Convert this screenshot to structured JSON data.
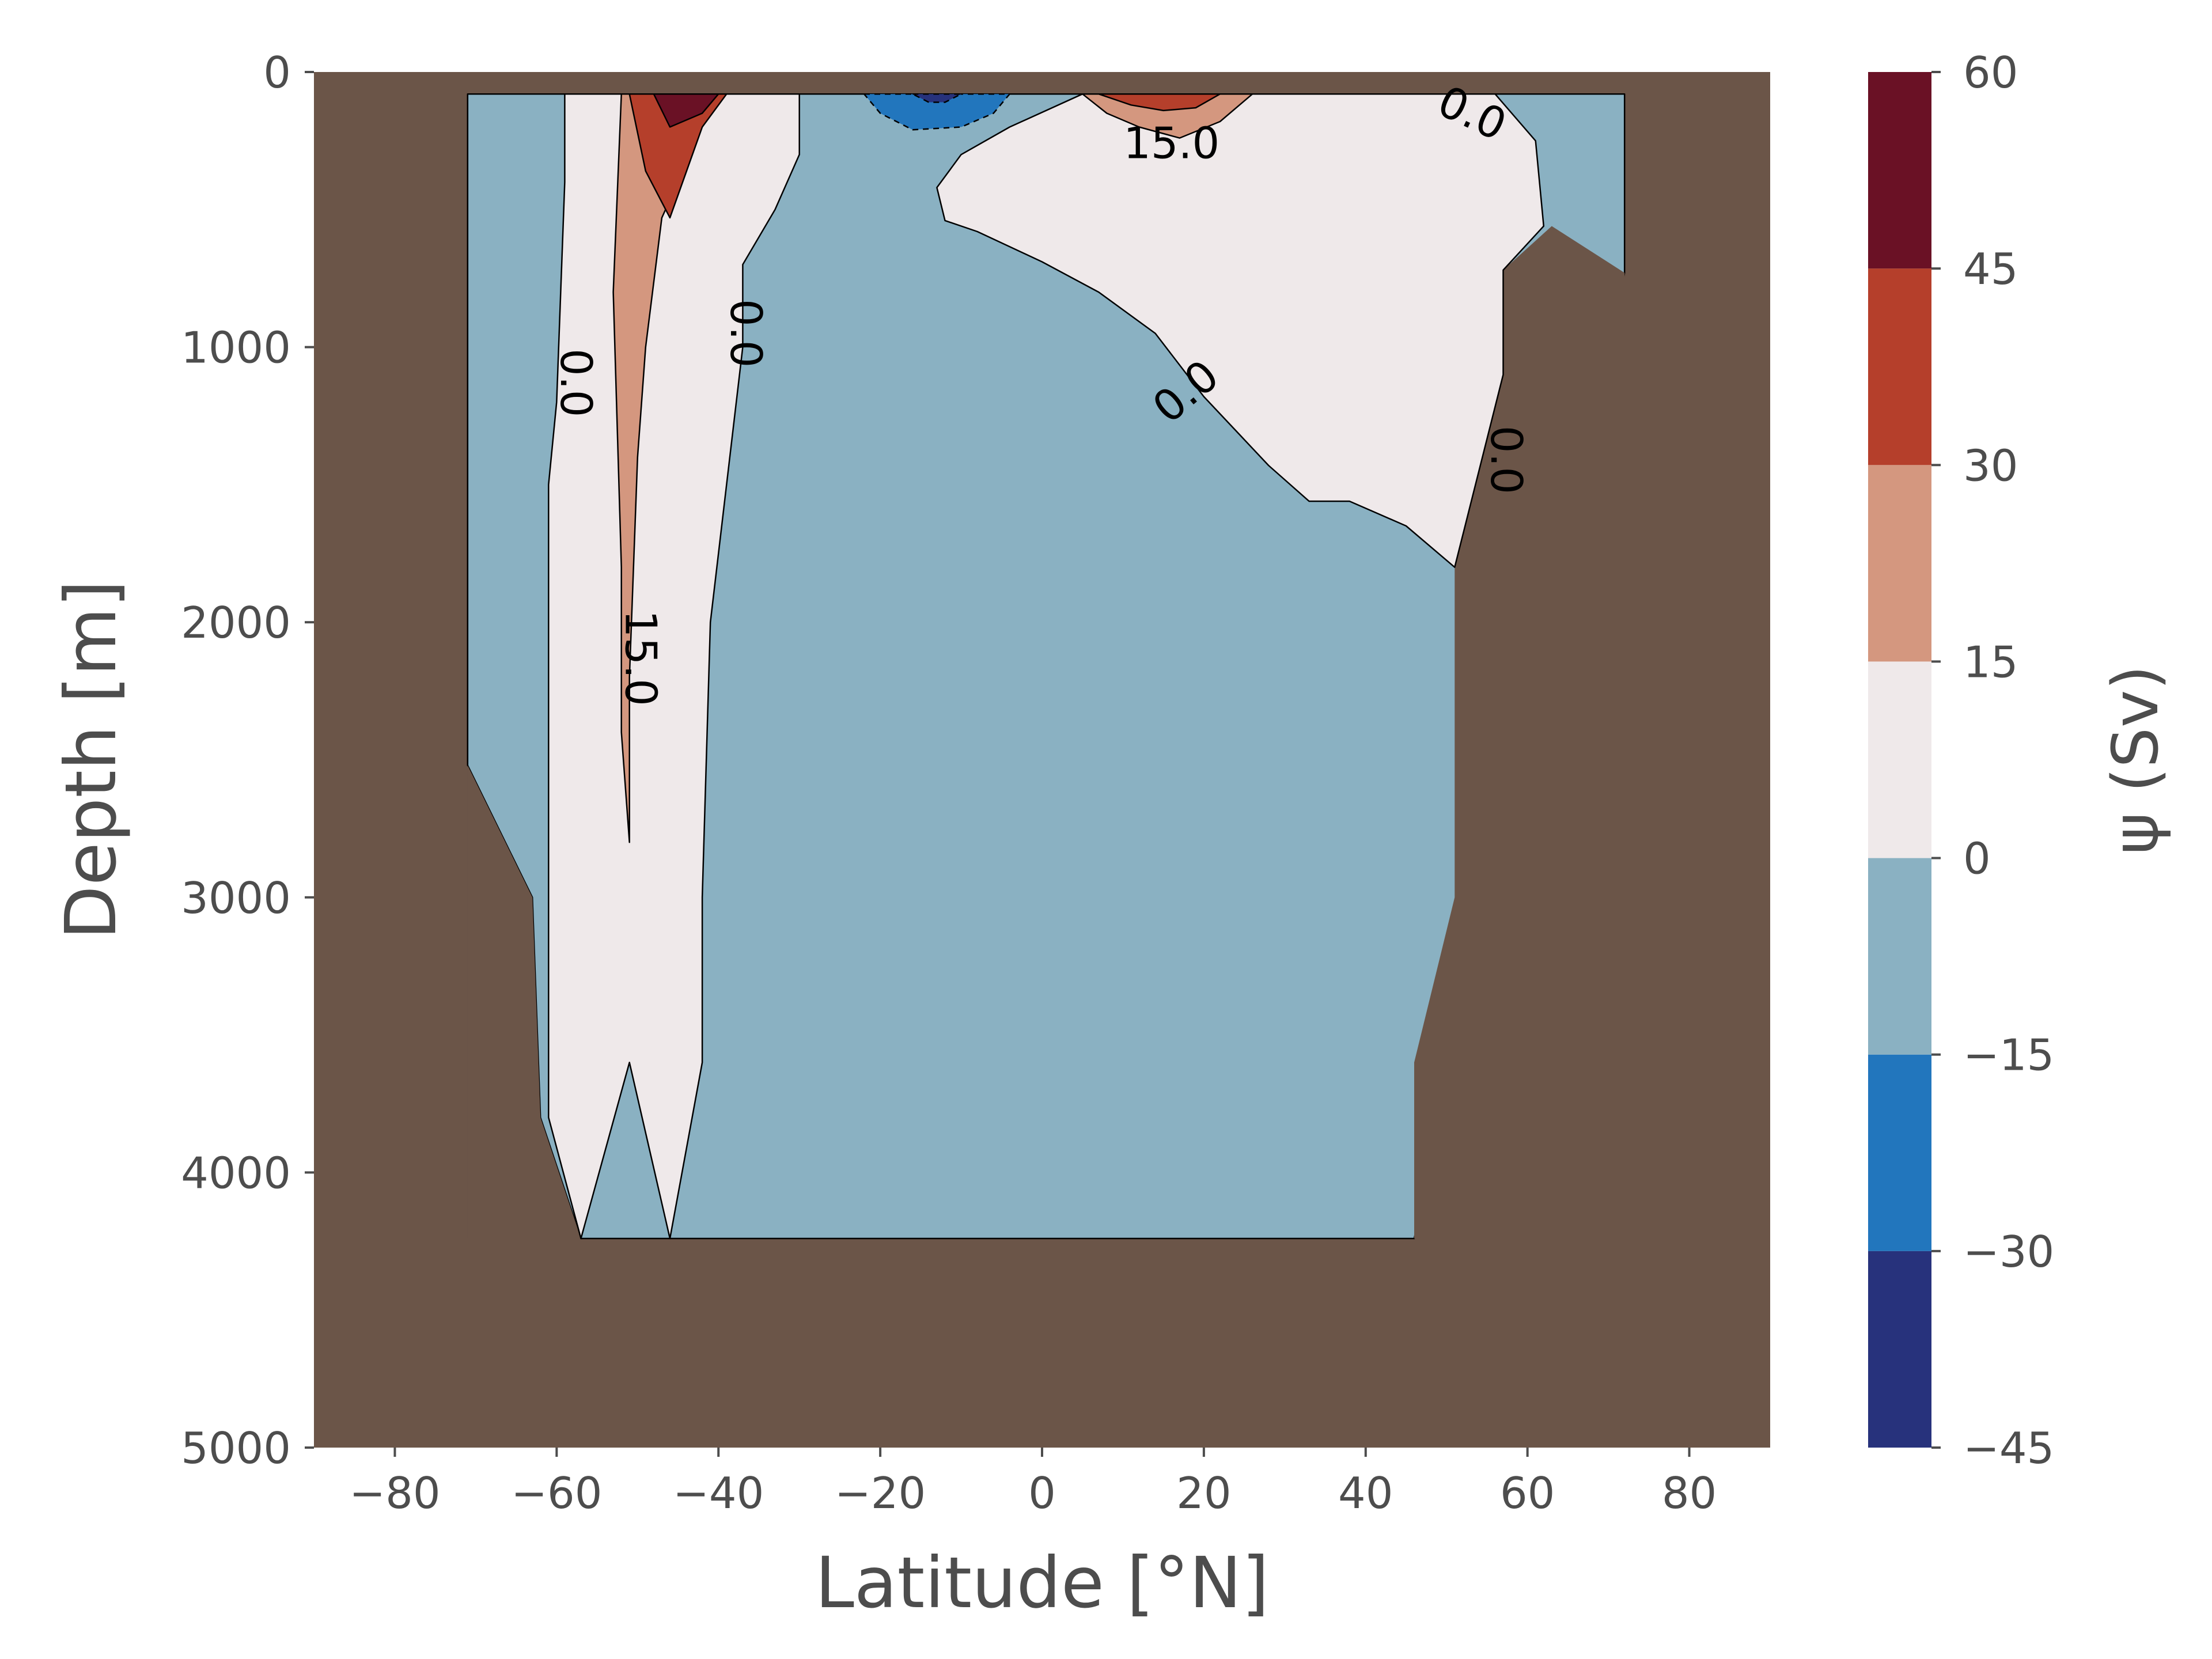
{
  "chart_data": {
    "type": "contour",
    "title": "",
    "xlabel": "Latitude [°N]",
    "ylabel": "Depth [m]",
    "xlim": [
      -90,
      90
    ],
    "ylim": [
      5000,
      0
    ],
    "y_inverted": true,
    "xticks": [
      -80,
      -60,
      -40,
      -20,
      0,
      20,
      40,
      60,
      80
    ],
    "xtick_labels": [
      "−80",
      "−60",
      "−40",
      "−20",
      "0",
      "20",
      "40",
      "60",
      "80"
    ],
    "yticks": [
      0,
      1000,
      2000,
      3000,
      4000,
      5000
    ],
    "ytick_labels": [
      "0",
      "1000",
      "2000",
      "3000",
      "4000",
      "5000"
    ],
    "grid": false,
    "colorbar": {
      "label": "ψ (Sv)",
      "levels": [
        -45,
        -30,
        -15,
        0,
        15,
        30,
        45,
        60
      ],
      "tick_labels": [
        "−45",
        "−30",
        "−15",
        "0",
        "15",
        "30",
        "45",
        "60"
      ],
      "colors": [
        "#27327c",
        "#2276bd",
        "#8ab1c2",
        "#efe9ea",
        "#d4977f",
        "#b53f2b",
        "#6a1125"
      ]
    },
    "land_color": "#6b5548",
    "contour_labels": [
      {
        "text": "0.0",
        "lat": -58,
        "depth": 1130
      },
      {
        "text": "0.0",
        "lat": -37,
        "depth": 950
      },
      {
        "text": "15.0",
        "lat": -50,
        "depth": 2130
      },
      {
        "text": "15.0",
        "lat": 16,
        "depth": 270
      },
      {
        "text": "0.0",
        "lat": 18,
        "depth": 1170
      },
      {
        "text": "0.0",
        "lat": 53,
        "depth": 160
      },
      {
        "text": "0.0",
        "lat": 57,
        "depth": 1410
      }
    ],
    "regions": [
      {
        "name": "water",
        "value_class": "-15 to 0",
        "points": [
          [
            -71,
            380
          ],
          [
            -71,
            80
          ],
          [
            72,
            80
          ],
          [
            72,
            730
          ],
          [
            46,
            4240
          ],
          [
            -46,
            4240
          ],
          [
            -57,
            4240
          ],
          [
            -62,
            3800
          ],
          [
            -63,
            3000
          ],
          [
            -71,
            2520
          ]
        ]
      },
      {
        "name": "deep-land-west",
        "value_class": "land",
        "points": [
          [
            -71,
            2520
          ],
          [
            -63,
            3000
          ],
          [
            -62,
            3800
          ],
          [
            -57,
            4240
          ],
          [
            -71,
            4240
          ]
        ]
      },
      {
        "name": "deep-land-east",
        "value_class": "land",
        "points": [
          [
            72,
            730
          ],
          [
            63,
            560
          ],
          [
            57,
            720
          ],
          [
            57,
            1100
          ],
          [
            51,
            1800
          ],
          [
            51,
            3000
          ],
          [
            46,
            3600
          ],
          [
            46,
            4240
          ],
          [
            72,
            4240
          ]
        ]
      },
      {
        "name": "south-positive-band",
        "value_class": "0 to 15",
        "points": [
          [
            -59,
            80
          ],
          [
            -48,
            80
          ],
          [
            -46,
            80
          ],
          [
            -44,
            80
          ],
          [
            -38,
            80
          ],
          [
            -30,
            80
          ],
          [
            -30,
            300
          ],
          [
            -33,
            500
          ],
          [
            -37,
            700
          ],
          [
            -37,
            1000
          ],
          [
            -39,
            1500
          ],
          [
            -41,
            2000
          ],
          [
            -42,
            3000
          ],
          [
            -42,
            3600
          ],
          [
            -46,
            4240
          ],
          [
            -51,
            3600
          ],
          [
            -57,
            4240
          ],
          [
            -61,
            3800
          ],
          [
            -61,
            1500
          ],
          [
            -60,
            1200
          ],
          [
            -59,
            400
          ]
        ]
      },
      {
        "name": "south-15-contour",
        "value_class": "15 to 30",
        "points": [
          [
            -52,
            80
          ],
          [
            -41,
            80
          ],
          [
            -46,
            320
          ],
          [
            -45,
            400
          ],
          [
            -47,
            530
          ],
          [
            -49,
            1000
          ],
          [
            -50,
            1400
          ],
          [
            -51,
            2200
          ],
          [
            -51,
            2800
          ],
          [
            -52,
            2400
          ],
          [
            -52,
            1800
          ],
          [
            -53,
            800
          ]
        ]
      },
      {
        "name": "south-30-contour",
        "value_class": "30 to 45",
        "points": [
          [
            -51,
            80
          ],
          [
            -39,
            80
          ],
          [
            -42,
            200
          ],
          [
            -46,
            530
          ],
          [
            -49,
            360
          ]
        ]
      },
      {
        "name": "south-45-contour",
        "value_class": "45 to 60",
        "points": [
          [
            -48,
            80
          ],
          [
            -40,
            80
          ],
          [
            -42,
            150
          ],
          [
            -46,
            200
          ]
        ]
      },
      {
        "name": "equatorial-negative",
        "value_class": "-30 to -15",
        "points": [
          [
            -22,
            80
          ],
          [
            -4,
            80
          ],
          [
            -6,
            150
          ],
          [
            -10,
            200
          ],
          [
            -16,
            210
          ],
          [
            -20,
            150
          ]
        ]
      },
      {
        "name": "equatorial-negative-core",
        "value_class": "-45 to -30",
        "points": [
          [
            -16,
            80
          ],
          [
            -10,
            80
          ],
          [
            -12,
            110
          ],
          [
            -14,
            110
          ]
        ]
      },
      {
        "name": "north-positive-band",
        "value_class": "0 to 15",
        "points": [
          [
            5,
            80
          ],
          [
            26,
            80
          ],
          [
            34,
            80
          ],
          [
            40,
            80
          ],
          [
            56,
            80
          ],
          [
            61,
            250
          ],
          [
            62,
            560
          ],
          [
            57,
            720
          ],
          [
            57,
            1100
          ],
          [
            51,
            1800
          ],
          [
            45,
            1650
          ],
          [
            38,
            1560
          ],
          [
            33,
            1560
          ],
          [
            28,
            1430
          ],
          [
            20,
            1180
          ],
          [
            14,
            950
          ],
          [
            7,
            800
          ],
          [
            0,
            690
          ],
          [
            -8,
            580
          ],
          [
            -12,
            540
          ],
          [
            -13,
            420
          ],
          [
            -10,
            300
          ],
          [
            -4,
            200
          ]
        ]
      },
      {
        "name": "north-15-contour",
        "value_class": "15 to 30",
        "points": [
          [
            5,
            80
          ],
          [
            26,
            80
          ],
          [
            22,
            180
          ],
          [
            17,
            240
          ],
          [
            12,
            200
          ],
          [
            8,
            150
          ]
        ]
      },
      {
        "name": "north-30-contour",
        "value_class": "30 to 45",
        "points": [
          [
            7,
            80
          ],
          [
            22,
            80
          ],
          [
            19,
            130
          ],
          [
            15,
            140
          ],
          [
            11,
            120
          ]
        ]
      }
    ]
  }
}
